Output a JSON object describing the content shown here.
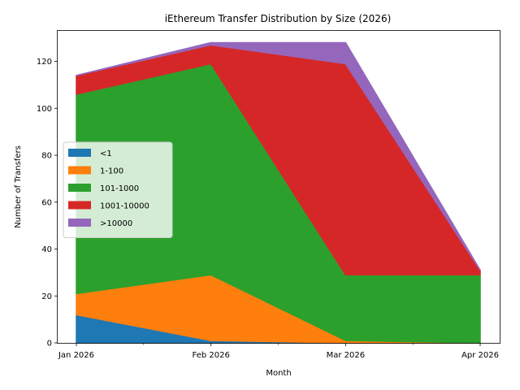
{
  "chart_data": {
    "type": "area",
    "stacked": true,
    "title": "iEthereum Transfer Distribution by Size (2026)",
    "xlabel": "Month",
    "ylabel": "Number of Transfers",
    "categories": [
      "Jan 2026",
      "Feb 2026",
      "Mar 2026",
      "Apr 2026"
    ],
    "ylim": [
      0,
      133
    ],
    "yticks": [
      0,
      20,
      40,
      60,
      80,
      100,
      120
    ],
    "grid": false,
    "legend_position": "center-left",
    "series": [
      {
        "name": "<1",
        "color": "#1f77b4",
        "values": [
          12,
          1,
          0,
          0
        ]
      },
      {
        "name": "1-100",
        "color": "#ff7f0e",
        "values": [
          9,
          28,
          1,
          0
        ]
      },
      {
        "name": "101-1000",
        "color": "#2ca02c",
        "values": [
          85,
          90,
          28,
          29
        ]
      },
      {
        "name": "1001-10000",
        "color": "#d62728",
        "values": [
          8,
          8,
          90,
          2
        ]
      },
      {
        "name": ">10000",
        "color": "#9467bd",
        "values": [
          0,
          1,
          9,
          0
        ]
      }
    ]
  }
}
